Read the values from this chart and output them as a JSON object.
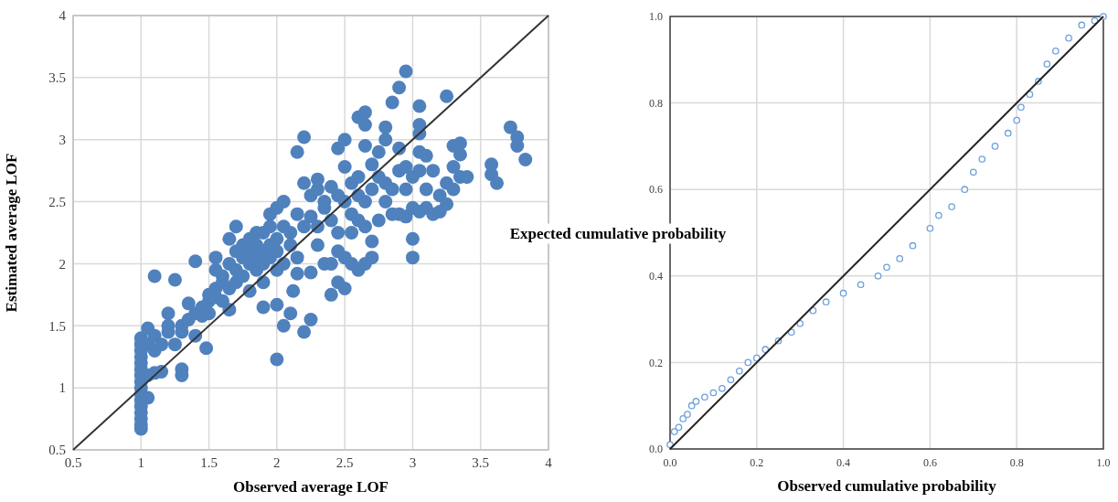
{
  "chart_data": [
    {
      "type": "scatter",
      "xlabel": "Observed average LOF",
      "ylabel": "Estimated average LOF",
      "xlim": [
        0.5,
        4
      ],
      "ylim": [
        0.5,
        4
      ],
      "xticks": [
        0.5,
        1,
        1.5,
        2,
        2.5,
        3,
        3.5,
        4
      ],
      "yticks": [
        0.5,
        1,
        1.5,
        2,
        2.5,
        3,
        3.5,
        4
      ],
      "grid": true,
      "series": [
        {
          "color": "#4f81bd",
          "marker": "circle",
          "x": [
            1,
            1,
            1,
            1,
            1,
            1,
            1,
            1,
            1,
            1,
            1,
            1,
            1,
            1,
            1,
            1,
            1.05,
            1.05,
            1.05,
            1.05,
            1.1,
            1.1,
            1.1,
            1.1,
            1.15,
            1.15,
            1.2,
            1.2,
            1.2,
            1.25,
            1.25,
            1.3,
            1.3,
            1.3,
            1.3,
            1.35,
            1.35,
            1.4,
            1.4,
            1.4,
            1.45,
            1.45,
            1.48,
            1.5,
            1.5,
            1.5,
            1.55,
            1.55,
            1.55,
            1.55,
            1.6,
            1.6,
            1.6,
            1.65,
            1.65,
            1.65,
            1.65,
            1.7,
            1.7,
            1.7,
            1.7,
            1.75,
            1.75,
            1.75,
            1.8,
            1.8,
            1.8,
            1.8,
            1.85,
            1.85,
            1.85,
            1.85,
            1.9,
            1.9,
            1.9,
            1.9,
            1.9,
            1.95,
            1.95,
            1.95,
            1.95,
            2,
            2,
            2,
            2,
            2,
            2,
            2.05,
            2.05,
            2.05,
            2.05,
            2.1,
            2.1,
            2.1,
            2.12,
            2.15,
            2.15,
            2.15,
            2.15,
            2.2,
            2.2,
            2.2,
            2.2,
            2.25,
            2.25,
            2.25,
            2.25,
            2.3,
            2.3,
            2.3,
            2.3,
            2.35,
            2.35,
            2.35,
            2.4,
            2.4,
            2.4,
            2.4,
            2.45,
            2.45,
            2.45,
            2.45,
            2.45,
            2.5,
            2.5,
            2.5,
            2.5,
            2.5,
            2.55,
            2.55,
            2.55,
            2.55,
            2.6,
            2.6,
            2.6,
            2.6,
            2.6,
            2.65,
            2.65,
            2.65,
            2.65,
            2.65,
            2.65,
            2.7,
            2.7,
            2.7,
            2.7,
            2.75,
            2.75,
            2.75,
            2.8,
            2.8,
            2.8,
            2.8,
            2.85,
            2.85,
            2.85,
            2.9,
            2.9,
            2.9,
            2.9,
            2.95,
            2.95,
            2.95,
            2.95,
            3,
            3,
            3,
            3,
            3.05,
            3.05,
            3.05,
            3.05,
            3.05,
            3.05,
            3.1,
            3.1,
            3.1,
            3.15,
            3.15,
            3.2,
            3.2,
            3.25,
            3.25,
            3.25,
            3.3,
            3.3,
            3.3,
            3.35,
            3.35,
            3.35,
            3.4,
            3.58,
            3.58,
            3.62,
            3.72,
            3.77,
            3.77,
            3.83
          ],
          "values": [
            0.67,
            0.7,
            0.75,
            0.8,
            0.85,
            0.9,
            0.95,
            1,
            1.05,
            1.1,
            1.15,
            1.2,
            1.25,
            1.3,
            1.35,
            1.4,
            0.92,
            1.1,
            1.48,
            1.35,
            1.9,
            1.42,
            1.3,
            1.12,
            1.13,
            1.35,
            1.6,
            1.5,
            1.45,
            1.35,
            1.87,
            1.15,
            1.1,
            1.5,
            1.45,
            1.55,
            1.68,
            2.02,
            1.42,
            1.6,
            1.65,
            1.58,
            1.32,
            1.6,
            1.7,
            1.75,
            1.8,
            1.95,
            2.05,
            1.73,
            1.9,
            1.85,
            1.7,
            1.63,
            2,
            2.2,
            1.8,
            2.3,
            2.1,
            1.95,
            1.85,
            2.05,
            2.15,
            1.9,
            2.2,
            2,
            1.78,
            2.1,
            2.15,
            1.95,
            2.05,
            2.25,
            1.65,
            2,
            2.1,
            2.25,
            1.85,
            2.4,
            2.15,
            2.3,
            2.05,
            2.45,
            2.2,
            1.95,
            1.67,
            1.23,
            2.1,
            2.5,
            2.3,
            2,
            1.5,
            2.15,
            2.25,
            1.6,
            1.78,
            2.9,
            2.05,
            1.92,
            2.4,
            3.02,
            2.65,
            2.3,
            1.45,
            2.55,
            2.38,
            1.93,
            1.55,
            2.68,
            2.15,
            2.3,
            2.6,
            2.5,
            2.45,
            2,
            2.62,
            2.35,
            2,
            1.75,
            2.93,
            2.55,
            2.25,
            1.85,
            2.1,
            3,
            2.78,
            2.5,
            2.05,
            1.8,
            2.65,
            2.4,
            2.25,
            2,
            3.18,
            2.7,
            2.55,
            2.35,
            1.95,
            3.22,
            3.12,
            2.95,
            2.5,
            2.3,
            2,
            2.8,
            2.6,
            2.18,
            2.05,
            2.9,
            2.7,
            2.35,
            3.1,
            3,
            2.65,
            2.5,
            3.3,
            2.6,
            2.4,
            3.42,
            2.93,
            2.75,
            2.4,
            3.55,
            2.78,
            2.6,
            2.38,
            2.05,
            2.2,
            2.45,
            2.7,
            3.27,
            3.12,
            3.05,
            2.9,
            2.75,
            2.42,
            2.87,
            2.6,
            2.45,
            2.75,
            2.4,
            2.55,
            2.42,
            3.35,
            2.65,
            2.48,
            2.95,
            2.6,
            2.78,
            2.97,
            2.88,
            2.7,
            2.7,
            2.8,
            2.72,
            2.65,
            3.1,
            3.02,
            2.95,
            2.84
          ]
        },
        {
          "type": "line",
          "marker": "none",
          "color": "#333333",
          "x": [
            0.5,
            4
          ],
          "values": [
            0.5,
            4
          ]
        }
      ]
    },
    {
      "type": "scatter",
      "xlabel": "Observed cumulative probability",
      "ylabel": "Expected cumulative probability",
      "xlim": [
        0,
        1
      ],
      "ylim": [
        0,
        1
      ],
      "xticks": [
        {
          "value": 0,
          "label": "0.0"
        },
        {
          "value": 0.2,
          "label": "0.2"
        },
        {
          "value": 0.4,
          "label": "0.4"
        },
        {
          "value": 0.6,
          "label": "0.6"
        },
        {
          "value": 0.8,
          "label": "0.8"
        },
        {
          "value": 1,
          "label": "1.0"
        }
      ],
      "yticks": [
        {
          "value": 0,
          "label": "0.0"
        },
        {
          "value": 0.2,
          "label": "0.2"
        },
        {
          "value": 0.4,
          "label": "0.4"
        },
        {
          "value": 0.6,
          "label": "0.6"
        },
        {
          "value": 0.8,
          "label": "0.8"
        },
        {
          "value": 1,
          "label": "1.0"
        }
      ],
      "grid": true,
      "series": [
        {
          "color": "#6ca0dc",
          "marker": "circle",
          "x": [
            0,
            0.01,
            0.02,
            0.03,
            0.04,
            0.05,
            0.06,
            0.08,
            0.1,
            0.12,
            0.14,
            0.16,
            0.18,
            0.2,
            0.22,
            0.25,
            0.28,
            0.3,
            0.33,
            0.36,
            0.4,
            0.44,
            0.48,
            0.5,
            0.53,
            0.56,
            0.6,
            0.62,
            0.65,
            0.68,
            0.7,
            0.72,
            0.75,
            0.78,
            0.8,
            0.81,
            0.83,
            0.85,
            0.87,
            0.89,
            0.92,
            0.95,
            0.98,
            1
          ],
          "values": [
            0.01,
            0.04,
            0.05,
            0.07,
            0.08,
            0.1,
            0.11,
            0.12,
            0.13,
            0.14,
            0.16,
            0.18,
            0.2,
            0.21,
            0.23,
            0.25,
            0.27,
            0.29,
            0.32,
            0.34,
            0.36,
            0.38,
            0.4,
            0.42,
            0.44,
            0.47,
            0.51,
            0.54,
            0.56,
            0.6,
            0.64,
            0.67,
            0.7,
            0.73,
            0.76,
            0.79,
            0.82,
            0.85,
            0.89,
            0.92,
            0.95,
            0.98,
            0.99,
            1
          ]
        },
        {
          "type": "line",
          "marker": "none",
          "color": "#222222",
          "x": [
            0,
            1
          ],
          "values": [
            0,
            1
          ]
        }
      ]
    }
  ]
}
